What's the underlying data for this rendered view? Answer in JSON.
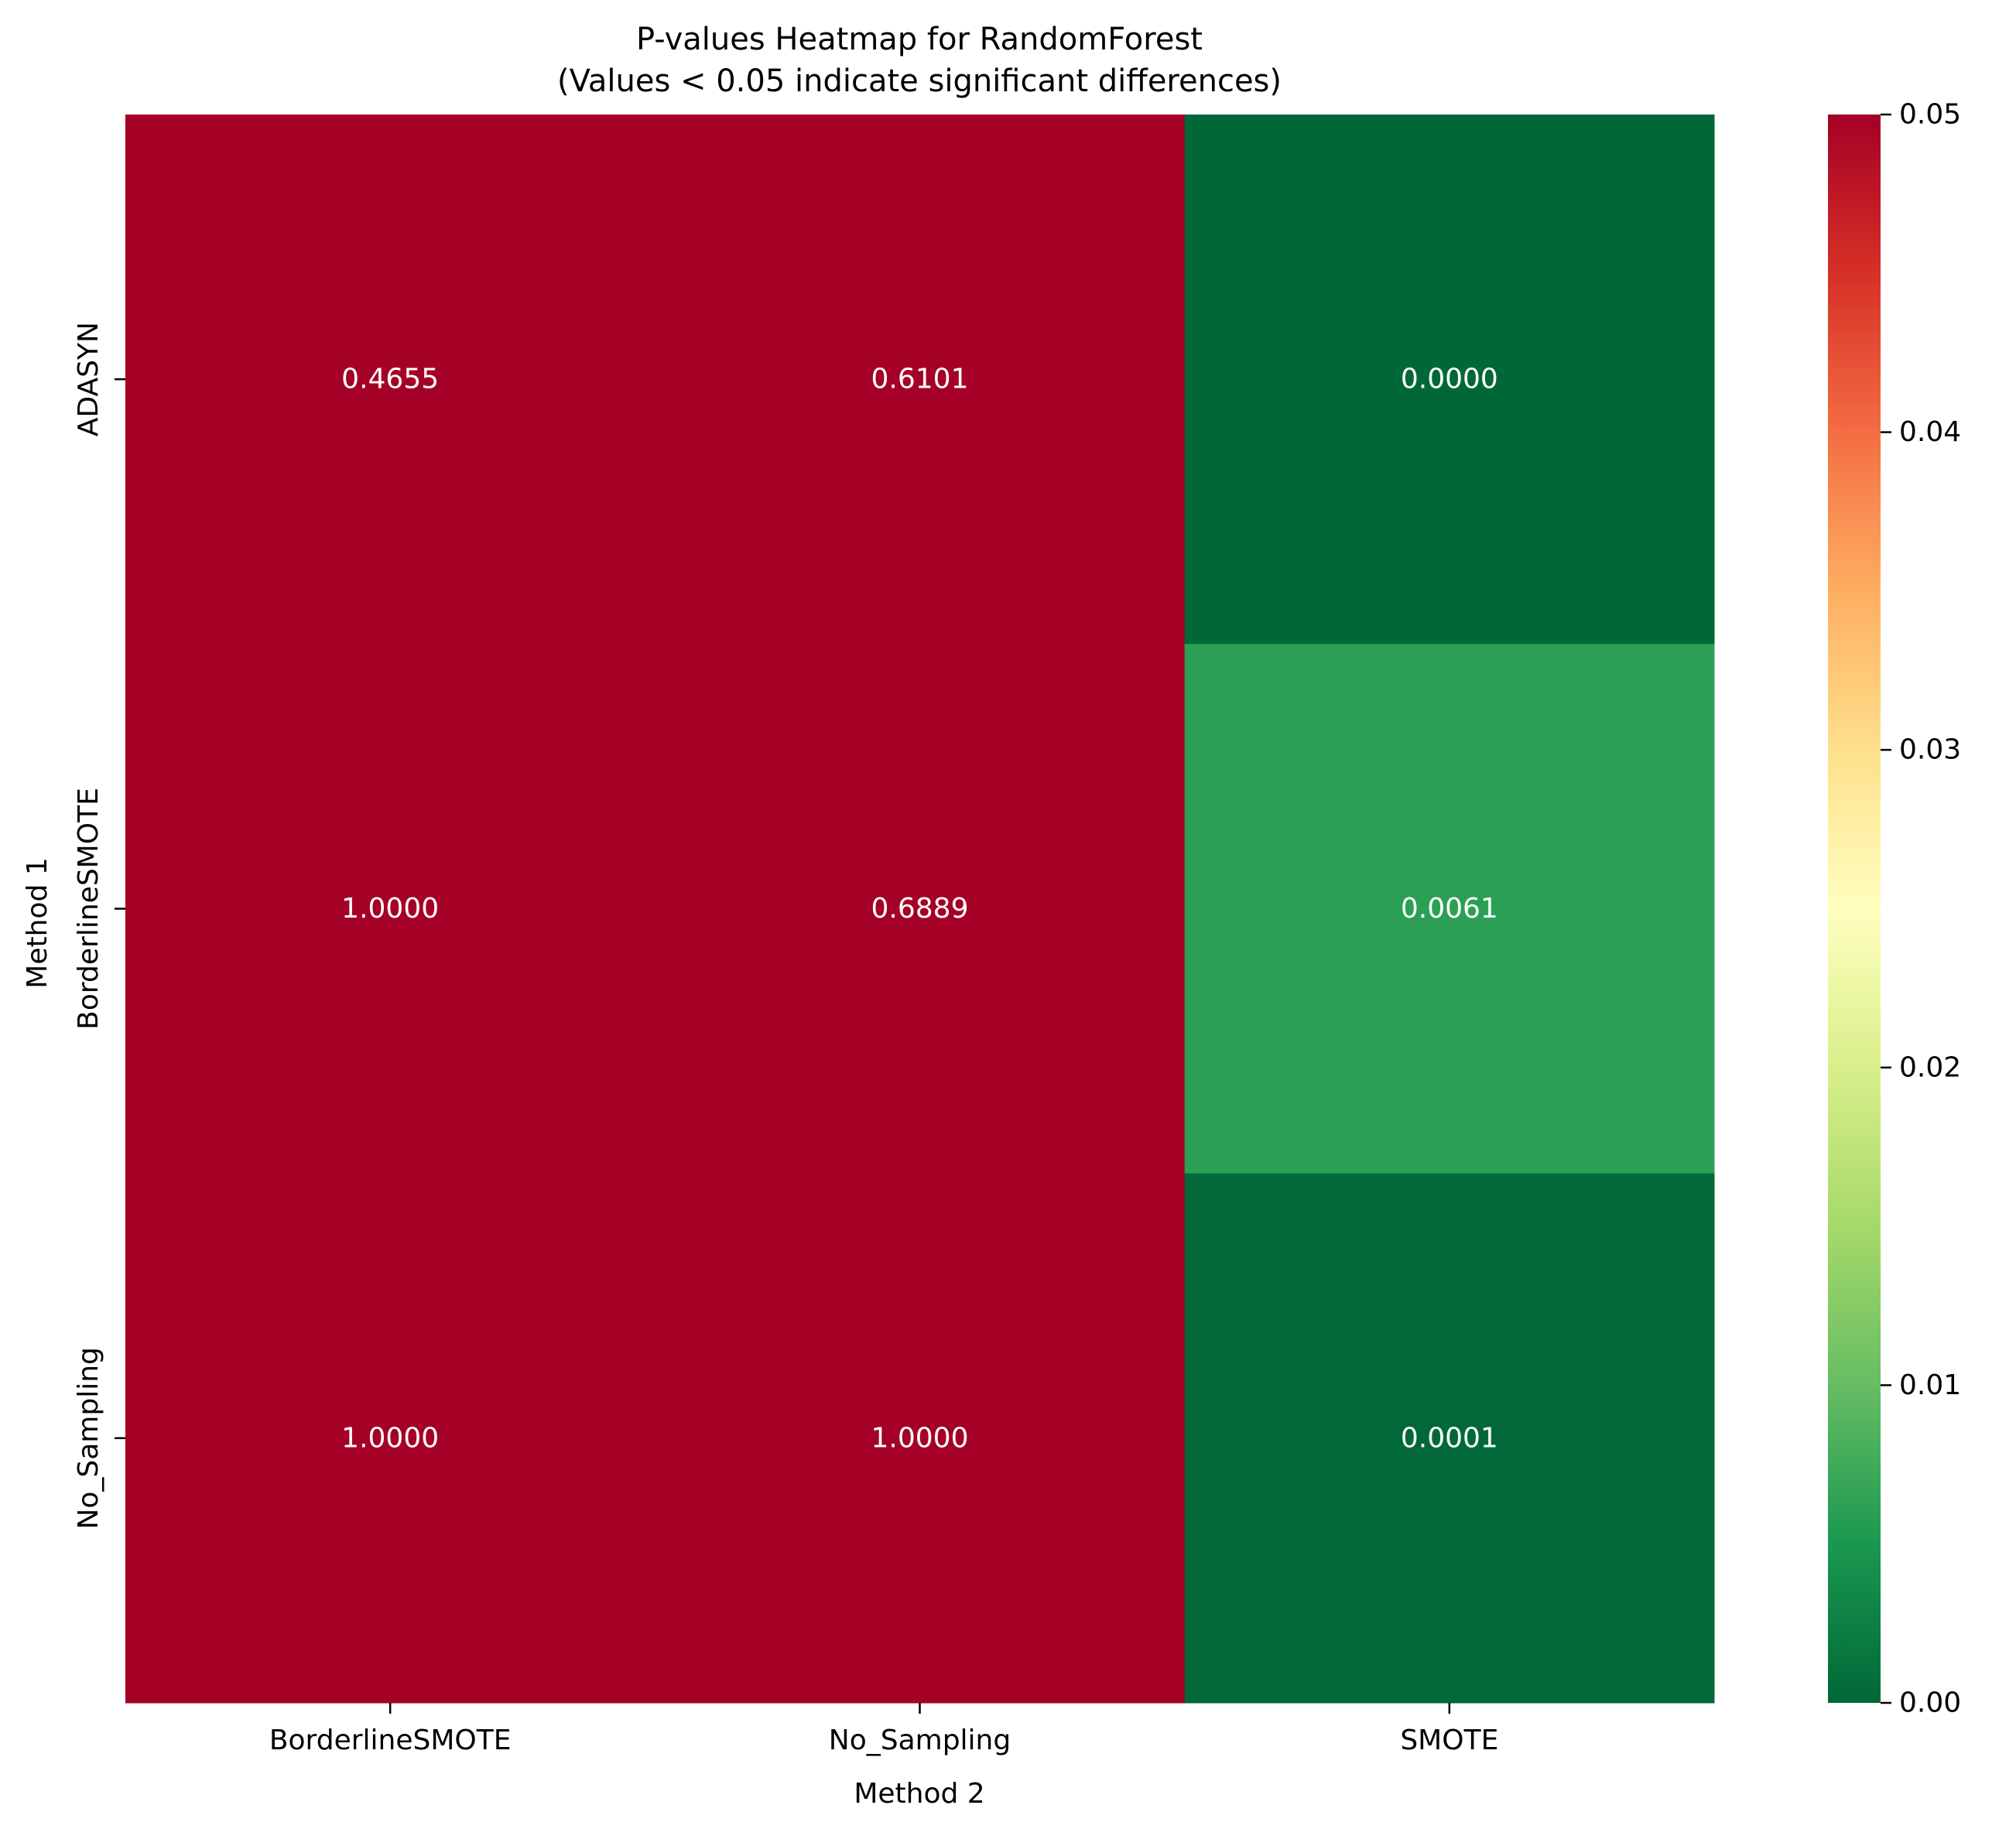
{
  "chart_data": {
    "type": "heatmap",
    "title": "P-values Heatmap for RandomForest",
    "subtitle": "(Values < 0.05 indicate significant differences)",
    "xlabel": "Method 2",
    "ylabel": "Method 1",
    "x_categories": [
      "BorderlineSMOTE",
      "No_Sampling",
      "SMOTE"
    ],
    "y_categories": [
      "ADASYN",
      "BorderlineSMOTE",
      "No_Sampling"
    ],
    "values": [
      [
        0.4655,
        0.6101,
        0.0
      ],
      [
        1.0,
        0.6889,
        0.0061
      ],
      [
        1.0,
        1.0,
        0.0001
      ]
    ],
    "cell_labels": [
      [
        "0.4655",
        "0.6101",
        "0.0000"
      ],
      [
        "1.0000",
        "0.6889",
        "0.0061"
      ],
      [
        "1.0000",
        "1.0000",
        "0.0001"
      ]
    ],
    "colormap": "RdYlGn_r",
    "vmin": 0.0,
    "vmax": 0.05,
    "colorbar": {
      "ticks": [
        0.0,
        0.01,
        0.02,
        0.03,
        0.04,
        0.05
      ],
      "tick_labels": [
        "0.00",
        "0.01",
        "0.02",
        "0.03",
        "0.04",
        "0.05"
      ],
      "colors": [
        "#006837",
        "#1a9850",
        "#66bd63",
        "#a6d96a",
        "#d9ef8b",
        "#ffffbf",
        "#fee08b",
        "#fdae61",
        "#f46d43",
        "#d73027",
        "#a50026"
      ]
    },
    "grid": false
  }
}
